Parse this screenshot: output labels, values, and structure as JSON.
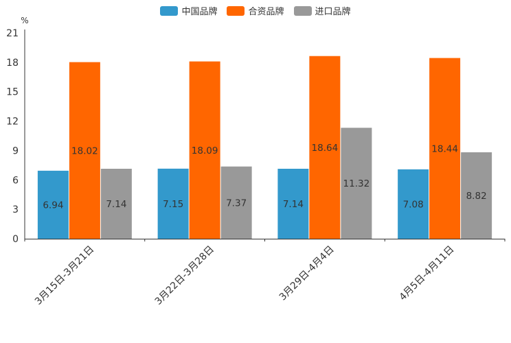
{
  "chart_data": {
    "type": "bar",
    "unit": "%",
    "categories": [
      "3月15日-3月21日",
      "3月22日-3月28日",
      "3月29日-4月4日",
      "4月5日-4月11日"
    ],
    "series": [
      {
        "name": "中国品牌",
        "color": "#3399cc",
        "values": [
          6.94,
          7.15,
          7.14,
          7.08
        ],
        "labels": [
          "6.94",
          "7.15",
          "7.14",
          "7.08"
        ]
      },
      {
        "name": "合资品牌",
        "color": "#ff6600",
        "values": [
          18.02,
          18.09,
          18.64,
          18.44
        ],
        "labels": [
          "18.02",
          "18.09",
          "18.64",
          "18.44"
        ]
      },
      {
        "name": "进口品牌",
        "color": "#999999",
        "values": [
          7.14,
          7.37,
          11.32,
          8.82
        ],
        "labels": [
          "7.14",
          "7.37",
          "11.32",
          "8.82"
        ]
      }
    ],
    "yticks": [
      "0",
      "3",
      "6",
      "9",
      "12",
      "15",
      "18",
      "21"
    ],
    "ylim": [
      0,
      21
    ],
    "legend_position": "top-center",
    "grid": false
  }
}
